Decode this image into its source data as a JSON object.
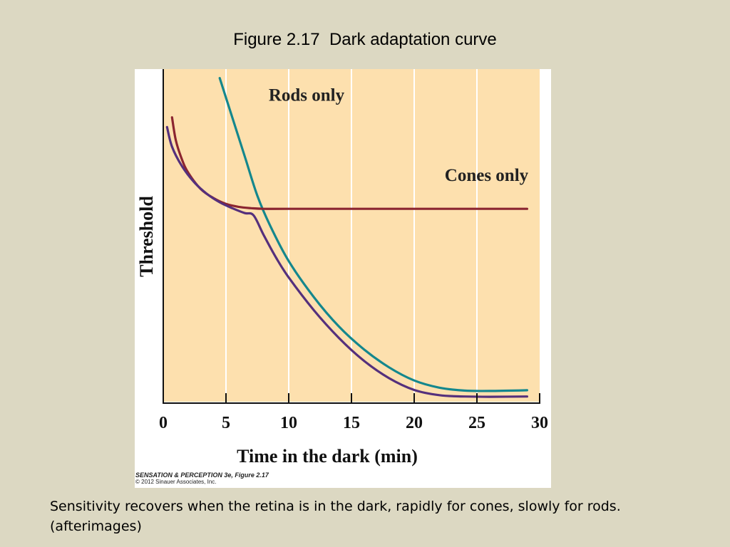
{
  "slide": {
    "title": "Figure 2.17  Dark adaptation curve",
    "caption_line1": "Sensitivity recovers when the retina is in the dark, rapidly for cones, slowly for rods.",
    "caption_line2": "(afterimages)",
    "background": "#dcd8c2"
  },
  "figure": {
    "credit_line1": "SENSATION & PERCEPTION 3e, Figure 2.17",
    "credit_line2": "© 2012 Sinauer Associates, Inc.",
    "plot_background": "#fde0ae"
  },
  "chart_data": {
    "type": "line",
    "xlabel": "Time in the dark (min)",
    "ylabel": "Threshold",
    "xlim": [
      0,
      30
    ],
    "ylim": [
      0,
      100
    ],
    "xticks": [
      0,
      5,
      10,
      15,
      20,
      25,
      30
    ],
    "yticks_labeled": false,
    "grid": "vertical",
    "series": [
      {
        "name": "Rods only",
        "color": "#14878d",
        "x": [
          4.5,
          5.5,
          6.5,
          7.5,
          8.5,
          10,
          12,
          14,
          16,
          18,
          20,
          22,
          24,
          26,
          29
        ],
        "y": [
          99,
          87,
          75,
          63,
          54,
          43,
          32,
          23,
          16,
          10.5,
          6.5,
          4.3,
          3.4,
          3.3,
          3.5
        ]
      },
      {
        "name": "Cones only",
        "color": "#8b2530",
        "x": [
          0.7,
          1,
          1.5,
          2,
          3,
          4,
          5,
          6,
          7,
          8,
          10,
          15,
          20,
          25,
          29
        ],
        "y": [
          87,
          80,
          74,
          70,
          65,
          62.3,
          60.5,
          59.6,
          59.2,
          59,
          59,
          59,
          59,
          59,
          59
        ]
      },
      {
        "name": "",
        "color": "#55307c",
        "x": [
          0.3,
          0.7,
          1.5,
          2.5,
          3.5,
          4.5,
          5.5,
          6.5,
          7.2,
          8,
          9,
          10,
          12,
          14,
          16,
          18,
          20,
          22,
          24,
          26,
          29
        ],
        "y": [
          84,
          78,
          72,
          67,
          63.5,
          61,
          59.2,
          57.7,
          57,
          51,
          44,
          38,
          28,
          19.5,
          12.5,
          7.2,
          3.6,
          2,
          1.6,
          1.5,
          1.6
        ]
      }
    ]
  }
}
